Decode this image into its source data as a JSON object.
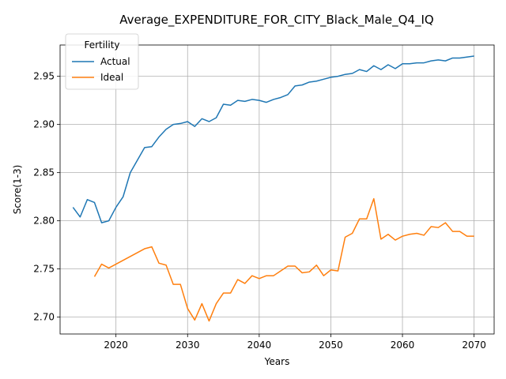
{
  "chart_data": {
    "type": "line",
    "title": "Average_EXPENDITURE_FOR_CITY_Black_Male_Q4_IQ",
    "xlabel": "Years",
    "ylabel": "Score(1-3)",
    "xlim": [
      2012.2,
      2072.8
    ],
    "ylim": [
      2.6825,
      2.9825
    ],
    "xticks": [
      2020,
      2030,
      2040,
      2050,
      2060,
      2070
    ],
    "yticks": [
      2.7,
      2.75,
      2.8,
      2.85,
      2.9,
      2.95
    ],
    "xtick_labels": [
      "2020",
      "2030",
      "2040",
      "2050",
      "2060",
      "2070"
    ],
    "ytick_labels": [
      "2.70",
      "2.75",
      "2.80",
      "2.85",
      "2.90",
      "2.95"
    ],
    "grid": true,
    "legend": {
      "title": "Fertility",
      "position": "upper left"
    },
    "series": [
      {
        "name": "Actual",
        "color": "#1f77b4",
        "x": [
          2014,
          2015,
          2016,
          2017,
          2018,
          2019,
          2020,
          2021,
          2022,
          2023,
          2024,
          2025,
          2026,
          2027,
          2028,
          2029,
          2030,
          2031,
          2032,
          2033,
          2034,
          2035,
          2036,
          2037,
          2038,
          2039,
          2040,
          2041,
          2042,
          2043,
          2044,
          2045,
          2046,
          2047,
          2048,
          2049,
          2050,
          2051,
          2052,
          2053,
          2054,
          2055,
          2056,
          2057,
          2058,
          2059,
          2060,
          2061,
          2062,
          2063,
          2064,
          2065,
          2066,
          2067,
          2068,
          2069,
          2070
        ],
        "values": [
          2.814,
          2.804,
          2.822,
          2.819,
          2.798,
          2.8,
          2.814,
          2.825,
          2.85,
          2.863,
          2.876,
          2.877,
          2.887,
          2.895,
          2.9,
          2.901,
          2.903,
          2.898,
          2.906,
          2.903,
          2.907,
          2.921,
          2.92,
          2.925,
          2.924,
          2.926,
          2.925,
          2.923,
          2.926,
          2.928,
          2.931,
          2.94,
          2.941,
          2.944,
          2.945,
          2.947,
          2.949,
          2.95,
          2.952,
          2.953,
          2.957,
          2.955,
          2.961,
          2.957,
          2.962,
          2.958,
          2.963,
          2.963,
          2.964,
          2.964,
          2.966,
          2.967,
          2.966,
          2.969,
          2.969,
          2.97,
          2.971
        ]
      },
      {
        "name": "Ideal",
        "color": "#ff7f0e",
        "x": [
          2017,
          2018,
          2019,
          2020,
          2021,
          2022,
          2023,
          2024,
          2025,
          2026,
          2027,
          2028,
          2029,
          2030,
          2031,
          2032,
          2033,
          2034,
          2035,
          2036,
          2037,
          2038,
          2039,
          2040,
          2041,
          2042,
          2043,
          2044,
          2045,
          2046,
          2047,
          2048,
          2049,
          2050,
          2051,
          2052,
          2053,
          2054,
          2055,
          2056,
          2057,
          2058,
          2059,
          2060,
          2061,
          2062,
          2063,
          2064,
          2065,
          2066,
          2067,
          2068,
          2069,
          2070
        ],
        "values": [
          2.742,
          2.755,
          2.751,
          2.755,
          2.759,
          2.763,
          2.767,
          2.771,
          2.773,
          2.756,
          2.754,
          2.734,
          2.734,
          2.709,
          2.697,
          2.714,
          2.696,
          2.714,
          2.725,
          2.725,
          2.739,
          2.735,
          2.743,
          2.74,
          2.743,
          2.743,
          2.748,
          2.753,
          2.753,
          2.746,
          2.747,
          2.754,
          2.743,
          2.749,
          2.748,
          2.783,
          2.787,
          2.802,
          2.802,
          2.823,
          2.781,
          2.786,
          2.78,
          2.784,
          2.786,
          2.787,
          2.785,
          2.794,
          2.793,
          2.798,
          2.789,
          2.789,
          2.784,
          2.784
        ]
      }
    ]
  }
}
